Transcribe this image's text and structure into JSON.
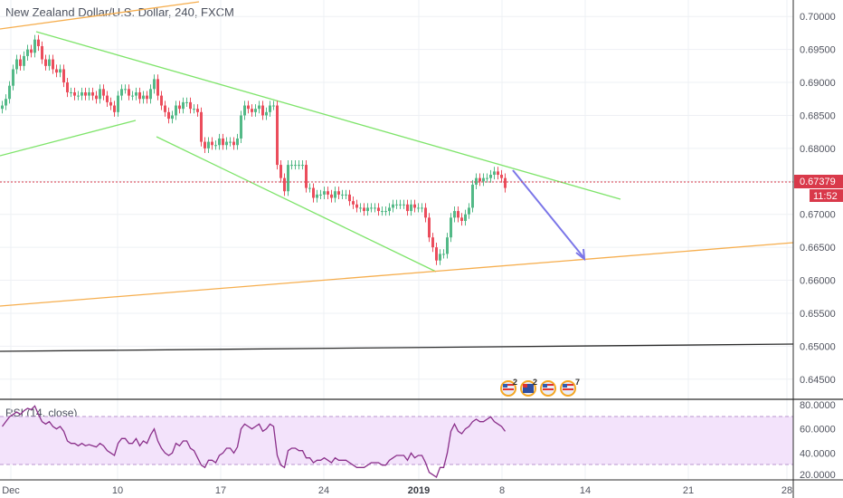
{
  "chart_title": "New Zealand Dollar/U.S. Dollar, 240, FXCM",
  "rsi_label": "RSI (14, close)",
  "colors": {
    "up": "#53b987",
    "down": "#eb4d5c",
    "trend_green": "#7ee46a",
    "trend_orange": "#f6ae4e",
    "arrow": "#7b76e8",
    "price_line": "#d9394a",
    "rsi": "#8a2f8a",
    "rsi_band": "#f3e3fb",
    "grid": "#eef0f4"
  },
  "price_axis": {
    "ticks": [
      "0.70000",
      "0.69500",
      "0.69000",
      "0.68500",
      "0.68000",
      "0.67500",
      "0.67000",
      "0.66500",
      "0.66000",
      "0.65500",
      "0.65000",
      "0.64500"
    ],
    "current_price": "0.67379",
    "countdown": "11:52"
  },
  "rsi_axis": {
    "ticks": [
      "80.0000",
      "60.0000",
      "40.0000",
      "20.0000"
    ]
  },
  "time_axis": {
    "labels": [
      "Dec",
      "10",
      "17",
      "24",
      "2019",
      "8",
      "14",
      "21",
      "28"
    ]
  },
  "event_badges": [
    {
      "count": "2"
    },
    {
      "count": "2"
    },
    {
      "count": "7"
    }
  ],
  "chart_data": {
    "type": "line",
    "title": "New Zealand Dollar/U.S. Dollar, 240, FXCM",
    "series": [
      {
        "name": "NZDUSD",
        "x": [
          1,
          5,
          9,
          13,
          17,
          21,
          25,
          29,
          33,
          37,
          41,
          45,
          49,
          53,
          57,
          61,
          65,
          69,
          73,
          77,
          81,
          85,
          89,
          93,
          97,
          101,
          105,
          109,
          113,
          117,
          121,
          125,
          129,
          133,
          137,
          141,
          145,
          149,
          153,
          157,
          161,
          165,
          169,
          173,
          177,
          181,
          185,
          189,
          193,
          197,
          201,
          205,
          209,
          213,
          217,
          221,
          225,
          229,
          233,
          237,
          241,
          245,
          249,
          253,
          257,
          261,
          265,
          269,
          273,
          277,
          281,
          285,
          289,
          293,
          297,
          301,
          305,
          309,
          313,
          317,
          321,
          325,
          329,
          333,
          337,
          341,
          345,
          349,
          353,
          357,
          361,
          365,
          369,
          373,
          377,
          381,
          385,
          389,
          393,
          397,
          401,
          405,
          409,
          413,
          417,
          421,
          425,
          429,
          433,
          437,
          441,
          445,
          449,
          453,
          457,
          461,
          465,
          469,
          473,
          477,
          481,
          485,
          489,
          493,
          497,
          501,
          505,
          509,
          513,
          517,
          521,
          525,
          529,
          533,
          537,
          541,
          545,
          549,
          553,
          557
        ],
        "values": [
          0.6865,
          0.6875,
          0.6895,
          0.692,
          0.6935,
          0.6925,
          0.694,
          0.695,
          0.6945,
          0.6965,
          0.6955,
          0.6935,
          0.6925,
          0.6935,
          0.692,
          0.6915,
          0.692,
          0.69,
          0.6885,
          0.6885,
          0.688,
          0.688,
          0.6885,
          0.688,
          0.6885,
          0.688,
          0.6875,
          0.689,
          0.688,
          0.687,
          0.6865,
          0.6855,
          0.688,
          0.689,
          0.689,
          0.688,
          0.688,
          0.6885,
          0.6875,
          0.688,
          0.6875,
          0.689,
          0.6905,
          0.688,
          0.6865,
          0.6855,
          0.6845,
          0.685,
          0.6865,
          0.686,
          0.687,
          0.687,
          0.686,
          0.686,
          0.6855,
          0.681,
          0.68,
          0.681,
          0.6805,
          0.6805,
          0.6815,
          0.6805,
          0.681,
          0.681,
          0.6805,
          0.6815,
          0.685,
          0.6865,
          0.686,
          0.6855,
          0.686,
          0.6865,
          0.685,
          0.6855,
          0.6865,
          0.6865,
          0.6775,
          0.6755,
          0.6735,
          0.6775,
          0.6775,
          0.6775,
          0.6775,
          0.6775,
          0.674,
          0.674,
          0.6725,
          0.673,
          0.673,
          0.6735,
          0.673,
          0.6725,
          0.6735,
          0.673,
          0.673,
          0.673,
          0.672,
          0.6715,
          0.671,
          0.671,
          0.6705,
          0.671,
          0.671,
          0.671,
          0.6705,
          0.6705,
          0.6705,
          0.671,
          0.6715,
          0.6715,
          0.6715,
          0.6715,
          0.6705,
          0.6715,
          0.671,
          0.671,
          0.671,
          0.6695,
          0.6665,
          0.665,
          0.663,
          0.664,
          0.664,
          0.6665,
          0.6695,
          0.6705,
          0.6695,
          0.669,
          0.67,
          0.671,
          0.6745,
          0.6755,
          0.675,
          0.6755,
          0.6755,
          0.676,
          0.6765,
          0.676,
          0.6755,
          0.674
        ]
      },
      {
        "name": "RSI",
        "x": [
          1,
          5,
          9,
          13,
          17,
          21,
          25,
          29,
          33,
          37,
          41,
          45,
          49,
          53,
          57,
          61,
          65,
          69,
          73,
          77,
          81,
          85,
          89,
          93,
          97,
          101,
          105,
          109,
          113,
          117,
          121,
          125,
          129,
          133,
          137,
          141,
          145,
          149,
          153,
          157,
          161,
          165,
          169,
          173,
          177,
          181,
          185,
          189,
          193,
          197,
          201,
          205,
          209,
          213,
          217,
          221,
          225,
          229,
          233,
          237,
          241,
          245,
          249,
          253,
          257,
          261,
          265,
          269,
          273,
          277,
          281,
          285,
          289,
          293,
          297,
          301,
          305,
          309,
          313,
          317,
          321,
          325,
          329,
          333,
          337,
          341,
          345,
          349,
          353,
          357,
          361,
          365,
          369,
          373,
          377,
          381,
          385,
          389,
          393,
          397,
          401,
          405,
          409,
          413,
          417,
          421,
          425,
          429,
          433,
          437,
          441,
          445,
          449,
          453,
          457,
          461,
          465,
          469,
          473,
          477,
          481,
          485,
          489,
          493,
          497,
          501,
          505,
          509,
          513,
          517,
          521,
          525,
          529,
          533,
          537,
          541,
          545,
          549,
          553,
          557
        ],
        "values": [
          62,
          66,
          70,
          72,
          74,
          72,
          75,
          77,
          76,
          79,
          72,
          66,
          64,
          66,
          62,
          60,
          62,
          58,
          50,
          48,
          48,
          46,
          48,
          46,
          47,
          46,
          45,
          48,
          46,
          42,
          40,
          38,
          48,
          52,
          52,
          48,
          48,
          52,
          46,
          50,
          48,
          55,
          60,
          50,
          44,
          40,
          38,
          40,
          48,
          46,
          50,
          50,
          44,
          42,
          36,
          30,
          28,
          34,
          34,
          32,
          38,
          40,
          44,
          44,
          40,
          45,
          60,
          64,
          62,
          60,
          62,
          64,
          58,
          60,
          64,
          62,
          38,
          30,
          28,
          42,
          44,
          44,
          42,
          42,
          36,
          36,
          32,
          34,
          34,
          36,
          34,
          32,
          36,
          34,
          34,
          34,
          32,
          30,
          28,
          28,
          28,
          30,
          32,
          32,
          32,
          30,
          30,
          34,
          36,
          38,
          38,
          38,
          34,
          40,
          36,
          38,
          38,
          32,
          24,
          22,
          20,
          28,
          28,
          40,
          58,
          64,
          58,
          56,
          60,
          62,
          66,
          68,
          66,
          66,
          68,
          70,
          66,
          64,
          62,
          58
        ]
      }
    ],
    "xlabel": "",
    "ylabel": "",
    "ylim": [
      0.6425,
      0.7025
    ],
    "rsi_ylim": [
      20,
      80
    ],
    "grid": true
  }
}
